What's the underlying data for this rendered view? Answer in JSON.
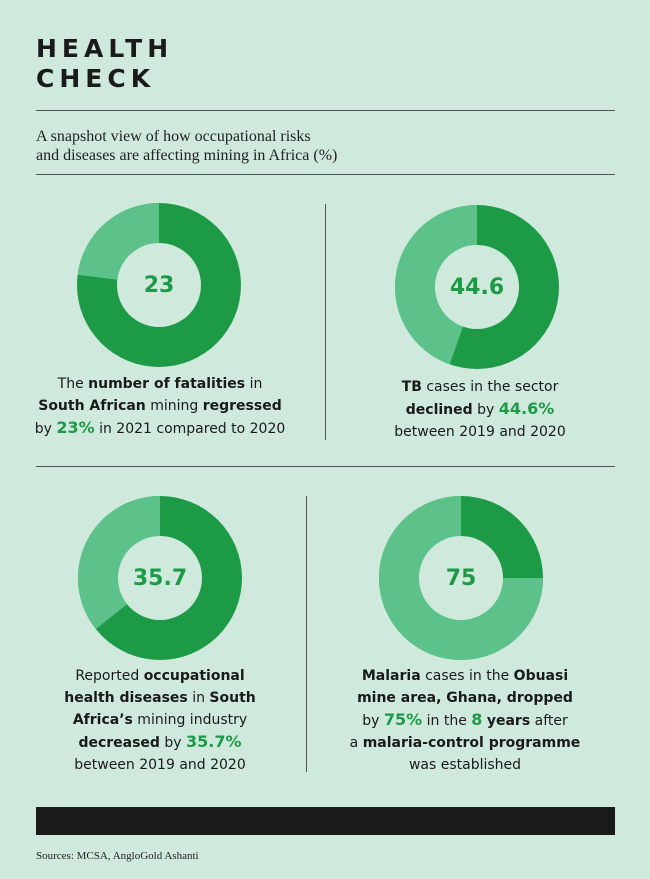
{
  "header": {
    "title_line1": "HEALTH",
    "title_line2": "CHECK",
    "subtitle_line1": "A snapshot view of how occupational risks",
    "subtitle_line2": "and diseases are affecting mining in Africa (%)"
  },
  "colors": {
    "dark_green": "#1c9a46",
    "light_green": "#5cc28a",
    "inner": "#cfeadc",
    "background": "#cfeadc",
    "accent_text": "#1c9a46"
  },
  "stats": [
    {
      "value": "23",
      "percent": 23,
      "caption": [
        [
          "The ",
          "number of fatalities",
          " in"
        ],
        [
          "South African",
          " mining ",
          "regressed"
        ],
        [
          "by ",
          "23%",
          " in 2021 compared to 2020"
        ]
      ]
    },
    {
      "value": "44.6",
      "percent": 44.6,
      "caption": [
        [
          "TB",
          " cases in the sector"
        ],
        [
          "declined",
          " by ",
          "44.6%"
        ],
        [
          "between 2019 and 2020"
        ]
      ]
    },
    {
      "value": "35.7",
      "percent": 35.7,
      "caption": [
        [
          "Reported ",
          "occupational"
        ],
        [
          "health diseases",
          " in ",
          "South"
        ],
        [
          "Africa’s",
          " mining industry"
        ],
        [
          "decreased",
          " by ",
          "35.7%"
        ],
        [
          "between 2019 and 2020"
        ]
      ]
    },
    {
      "value": "75",
      "percent": 75,
      "caption": [
        [
          "Malaria",
          " cases in the ",
          "Obuasi"
        ],
        [
          "mine area, Ghana, dropped"
        ],
        [
          "by ",
          "75%",
          " in the ",
          "8",
          " ",
          "years",
          " after"
        ],
        [
          "a ",
          "malaria-control programme"
        ],
        [
          "was established"
        ]
      ]
    }
  ],
  "sources": "Sources: MCSA, AngloGold Ashanti"
}
